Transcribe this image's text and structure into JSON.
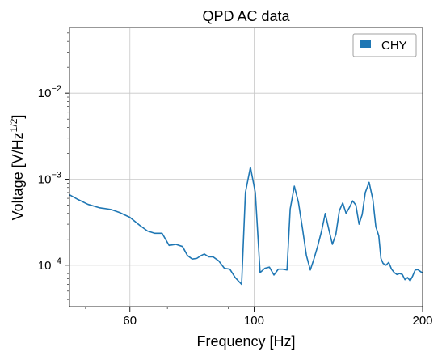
{
  "chart_data": {
    "type": "line",
    "title": "QPD AC data",
    "xlabel": "Frequency [Hz]",
    "ylabel_main": "Voltage [V/Hz",
    "ylabel_sup": "1/2",
    "ylabel_close": "]",
    "xscale": "log",
    "yscale": "log",
    "xlim": [
      46.8,
      200
    ],
    "ylim": [
      3.3e-05,
      0.058
    ],
    "grid": true,
    "legend_position": "top-right",
    "x_ticks": [
      {
        "value": 60,
        "label": "60"
      },
      {
        "value": 100,
        "label": "100"
      },
      {
        "value": 200,
        "label": "200"
      }
    ],
    "y_ticks": [
      {
        "value": 0.0001,
        "base": "10",
        "exp": "−4"
      },
      {
        "value": 0.001,
        "base": "10",
        "exp": "−3"
      },
      {
        "value": 0.01,
        "base": "10",
        "exp": "−2"
      }
    ],
    "series": [
      {
        "name": "CHY",
        "color": "#1f77b4",
        "points": [
          [
            46.8,
            0.00066
          ],
          [
            48.5,
            0.00058
          ],
          [
            50.5,
            0.00051
          ],
          [
            53,
            0.000465
          ],
          [
            55.5,
            0.000445
          ],
          [
            57.5,
            0.00041
          ],
          [
            60,
            0.00036
          ],
          [
            62.5,
            0.00029
          ],
          [
            64.5,
            0.00025
          ],
          [
            66.5,
            0.000235
          ],
          [
            68.5,
            0.000235
          ],
          [
            70.5,
            0.00017
          ],
          [
            72.5,
            0.000175
          ],
          [
            74.5,
            0.000165
          ],
          [
            76,
            0.00013
          ],
          [
            77.5,
            0.000118
          ],
          [
            79,
            0.00012
          ],
          [
            80.5,
            0.00013
          ],
          [
            81.5,
            0.000135
          ],
          [
            83,
            0.000125
          ],
          [
            84.5,
            0.000125
          ],
          [
            86.5,
            0.000112
          ],
          [
            88.5,
            9.2e-05
          ],
          [
            90.5,
            9e-05
          ],
          [
            92.5,
            7.2e-05
          ],
          [
            95,
            6e-05
          ],
          [
            96.5,
            0.0007
          ],
          [
            98.5,
            0.00138
          ],
          [
            100.5,
            0.0007
          ],
          [
            102.5,
            8.2e-05
          ],
          [
            104.5,
            9.2e-05
          ],
          [
            106.5,
            9.5e-05
          ],
          [
            108.5,
            7.7e-05
          ],
          [
            110.5,
            9e-05
          ],
          [
            112.5,
            9e-05
          ],
          [
            114.5,
            8.8e-05
          ],
          [
            116,
            0.00045
          ],
          [
            118,
            0.00083
          ],
          [
            120,
            0.00054
          ],
          [
            122,
            0.00027
          ],
          [
            124,
            0.00013
          ],
          [
            126,
            8.8e-05
          ],
          [
            128,
            0.00012
          ],
          [
            130,
            0.00017
          ],
          [
            132,
            0.00025
          ],
          [
            134,
            0.0004
          ],
          [
            136,
            0.00026
          ],
          [
            138,
            0.000175
          ],
          [
            140,
            0.00023
          ],
          [
            142,
            0.00043
          ],
          [
            144,
            0.00053
          ],
          [
            146,
            0.0004
          ],
          [
            148,
            0.00047
          ],
          [
            150,
            0.00056
          ],
          [
            152,
            0.0005
          ],
          [
            154,
            0.0003
          ],
          [
            156,
            0.00039
          ],
          [
            158,
            0.0007
          ],
          [
            160.5,
            0.00092
          ],
          [
            163,
            0.00058
          ],
          [
            165,
            0.00028
          ],
          [
            167,
            0.00022
          ],
          [
            168.5,
            0.00012
          ],
          [
            170,
            0.000105
          ],
          [
            172,
            0.0001
          ],
          [
            174,
            0.000108
          ],
          [
            176,
            9e-05
          ],
          [
            178,
            8.2e-05
          ],
          [
            180,
            7.8e-05
          ],
          [
            182,
            8e-05
          ],
          [
            184,
            7.8e-05
          ],
          [
            186,
            6.8e-05
          ],
          [
            188,
            7.2e-05
          ],
          [
            190,
            6.6e-05
          ],
          [
            192,
            7.5e-05
          ],
          [
            194,
            8.8e-05
          ],
          [
            196,
            8.9e-05
          ],
          [
            198,
            8.5e-05
          ],
          [
            200,
            8.1e-05
          ]
        ]
      }
    ]
  }
}
